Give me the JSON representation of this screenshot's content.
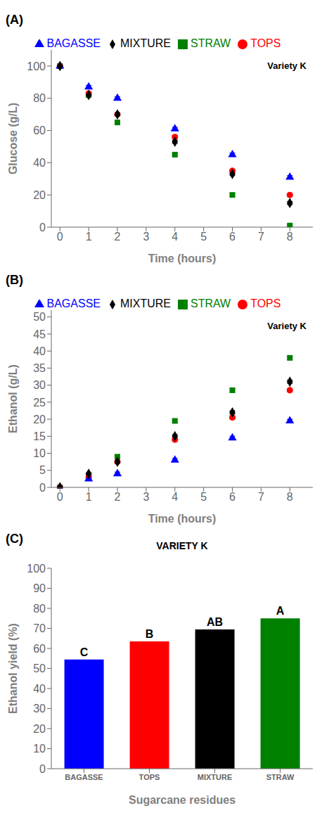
{
  "chart_data": [
    {
      "type": "scatter",
      "annotations": [
        "(A)",
        "Variety K"
      ],
      "xlabel": "Time (hours)",
      "ylabel": "Glucose (g/L)",
      "x": [
        0,
        1,
        2,
        4,
        6,
        8
      ],
      "xlim": [
        -0.3,
        8.8
      ],
      "xticks": [
        0,
        1,
        2,
        3,
        4,
        5,
        6,
        7,
        8
      ],
      "ylim": [
        0,
        110
      ],
      "yticks": [
        0,
        10,
        20,
        30,
        40,
        50,
        60,
        70,
        80,
        90,
        100
      ],
      "legend": "top",
      "grid": false,
      "series": [
        {
          "name": "STRAW",
          "color": "#008000",
          "marker": "square",
          "values": [
            100,
            82,
            65,
            45,
            20,
            1
          ],
          "errors": [
            0.5,
            1.0,
            1.0,
            1.0,
            1.0,
            0.5
          ]
        },
        {
          "name": "TOPS",
          "color": "#FF0000",
          "marker": "circle",
          "values": [
            100,
            83,
            70,
            56,
            35,
            20
          ],
          "errors": [
            0.5,
            1.0,
            1.0,
            1.0,
            1.0,
            1.0
          ]
        },
        {
          "name": "BAGASSE",
          "color": "#0000FF",
          "marker": "triangle",
          "values": [
            100,
            87,
            80,
            61,
            45,
            31
          ],
          "errors": [
            0.5,
            1.0,
            1.0,
            1.0,
            1.0,
            1.0
          ]
        },
        {
          "name": "MIXTURE",
          "color": "#000000",
          "marker": "diamond",
          "values": [
            100,
            82,
            70,
            53,
            33,
            15
          ],
          "errors": [
            0.5,
            1.0,
            1.0,
            1.0,
            1.0,
            1.0
          ]
        }
      ]
    },
    {
      "type": "scatter",
      "annotations": [
        "(B)",
        "Variety K"
      ],
      "xlabel": "Time (hours)",
      "ylabel": "Ethanol (g/L)",
      "x": [
        0,
        1,
        2,
        4,
        6,
        8
      ],
      "xlim": [
        -0.3,
        8.8
      ],
      "xticks": [
        0,
        1,
        2,
        3,
        4,
        5,
        6,
        7,
        8
      ],
      "ylim": [
        0,
        52
      ],
      "yticks": [
        0,
        5,
        10,
        15,
        20,
        25,
        30,
        35,
        40,
        45,
        50
      ],
      "legend": "top",
      "grid": false,
      "series": [
        {
          "name": "STRAW",
          "color": "#008000",
          "marker": "square",
          "values": [
            0,
            3.5,
            9.0,
            19.5,
            28.5,
            38.0
          ],
          "errors": [
            0.2,
            0.3,
            0.5,
            0.5,
            0.5,
            0.5
          ]
        },
        {
          "name": "TOPS",
          "color": "#FF0000",
          "marker": "circle",
          "values": [
            0,
            3.0,
            7.5,
            14.0,
            20.5,
            28.5
          ],
          "errors": [
            0.2,
            0.3,
            0.5,
            0.5,
            0.5,
            0.5
          ]
        },
        {
          "name": "BAGASSE",
          "color": "#0000FF",
          "marker": "triangle",
          "values": [
            0,
            2.5,
            4.0,
            8.0,
            14.5,
            19.5
          ],
          "errors": [
            0.2,
            0.3,
            0.5,
            0.5,
            0.5,
            0.5
          ]
        },
        {
          "name": "MIXTURE",
          "color": "#000000",
          "marker": "diamond",
          "values": [
            0,
            4.0,
            7.5,
            15.0,
            22.0,
            31.0
          ],
          "errors": [
            0.2,
            0.3,
            0.5,
            0.5,
            0.5,
            0.5
          ]
        }
      ]
    },
    {
      "type": "bar",
      "title": "VARIETY K",
      "annotations": [
        "(C)"
      ],
      "xlabel": "Sugarcane residues",
      "ylabel": "Ethanol yield (%)",
      "categories": [
        "BAGASSE",
        "TOPS",
        "MIXTURE",
        "STRAW"
      ],
      "values": [
        54.5,
        63.5,
        69.5,
        75.0
      ],
      "colors": [
        "#0000FF",
        "#FF0000",
        "#000000",
        "#008000"
      ],
      "labels": [
        "C",
        "B",
        "AB",
        "A"
      ],
      "ylim": [
        0,
        100
      ],
      "yticks": [
        0,
        10,
        20,
        30,
        40,
        50,
        60,
        70,
        80,
        90,
        100
      ],
      "grid": false
    }
  ]
}
